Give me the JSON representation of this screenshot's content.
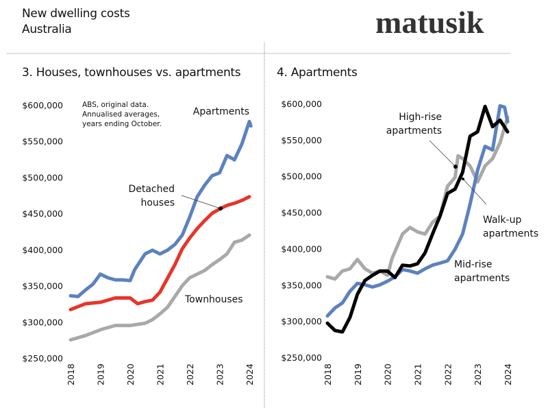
{
  "header": {
    "title": "New dwelling costs",
    "subtitle": "Australia",
    "logo": "matusik"
  },
  "colors": {
    "blue": "#5b82c0",
    "red": "#e8342a",
    "gray": "#a9a9a9",
    "black": "#000000"
  },
  "chart_data": [
    {
      "type": "line",
      "title": "3. Houses, townhouses vs. apartments",
      "note": [
        "ABS, original data.",
        "Annualised averages,",
        "years ending October."
      ],
      "xlim": [
        2018,
        2024
      ],
      "ylim": [
        250000,
        600000
      ],
      "x_ticks": [
        "2018",
        "2019",
        "2020",
        "2021",
        "2022",
        "2023",
        "2024"
      ],
      "y_ticks": [
        "$250,000",
        "$300,000",
        "$350,000",
        "$400,000",
        "$450,000",
        "$500,000",
        "$550,000",
        "$600,000"
      ],
      "grid": false,
      "series": [
        {
          "name": "Apartments",
          "color": "#5b82c0",
          "x": [
            2018,
            2018.25,
            2018.5,
            2018.75,
            2019,
            2019.25,
            2019.5,
            2019.75,
            2020,
            2020.15,
            2020.5,
            2020.75,
            2021,
            2021.25,
            2021.5,
            2021.75,
            2022,
            2022.25,
            2022.5,
            2022.75,
            2023,
            2023.25,
            2023.5,
            2023.75,
            2024,
            2024.05
          ],
          "y": [
            336000,
            335000,
            344000,
            352000,
            366000,
            361000,
            358000,
            358000,
            357000,
            372000,
            394000,
            399000,
            394000,
            399000,
            407000,
            420000,
            445000,
            473000,
            489000,
            502000,
            506000,
            530000,
            524000,
            546000,
            577000,
            571000
          ]
        },
        {
          "name": "Detached houses",
          "color": "#e8342a",
          "x": [
            2018,
            2018.5,
            2019,
            2019.5,
            2020,
            2020.25,
            2020.5,
            2020.75,
            2021,
            2021.25,
            2021.5,
            2021.75,
            2022,
            2022.25,
            2022.5,
            2022.75,
            2023,
            2023.25,
            2023.5,
            2023.75,
            2024
          ],
          "y": [
            317000,
            325000,
            327000,
            333000,
            333000,
            325000,
            328000,
            330000,
            341000,
            360000,
            379000,
            401000,
            416000,
            429000,
            440000,
            450000,
            456000,
            461000,
            464000,
            468000,
            473000
          ]
        },
        {
          "name": "Townhouses",
          "color": "#a9a9a9",
          "x": [
            2018,
            2018.5,
            2019,
            2019.5,
            2020,
            2020.5,
            2020.75,
            2021,
            2021.25,
            2021.5,
            2021.75,
            2022,
            2022.25,
            2022.5,
            2022.75,
            2023,
            2023.25,
            2023.5,
            2023.75,
            2024
          ],
          "y": [
            275000,
            281000,
            289000,
            295000,
            295000,
            298000,
            303000,
            311000,
            320000,
            335000,
            350000,
            361000,
            366000,
            371000,
            379000,
            386000,
            394000,
            410000,
            413000,
            420000
          ]
        }
      ]
    },
    {
      "type": "line",
      "title": "4. Apartments",
      "xlim": [
        2018,
        2024
      ],
      "ylim": [
        250000,
        600000
      ],
      "x_ticks": [
        "2018",
        "2019",
        "2020",
        "2021",
        "2022",
        "2023",
        "2024"
      ],
      "y_ticks": [
        "$250,000",
        "$300,000",
        "$350,000",
        "$400,000",
        "$450,000",
        "$500,000",
        "$550,000",
        "$600,000"
      ],
      "grid": false,
      "series": [
        {
          "name": "High-rise apartments",
          "color": "#a9a9a9",
          "x": [
            2018,
            2018.25,
            2018.5,
            2018.75,
            2019,
            2019.25,
            2019.5,
            2019.75,
            2020,
            2020.15,
            2020.5,
            2020.75,
            2021,
            2021.25,
            2021.5,
            2021.75,
            2022,
            2022.25,
            2022.35,
            2022.5,
            2022.75,
            2023,
            2023.25,
            2023.5,
            2023.75,
            2024
          ],
          "y": [
            361000,
            358000,
            369000,
            372000,
            385000,
            372000,
            366000,
            369000,
            363000,
            386000,
            420000,
            429000,
            423000,
            420000,
            436000,
            445000,
            486000,
            498000,
            528000,
            524000,
            514000,
            492000,
            514000,
            524000,
            546000,
            581000
          ]
        },
        {
          "name": "Mid-rise apartments",
          "color": "#5b82c0",
          "x": [
            2018,
            2018.25,
            2018.5,
            2018.75,
            2019,
            2019.25,
            2019.5,
            2019.75,
            2020,
            2020.25,
            2020.5,
            2020.75,
            2021,
            2021.25,
            2021.5,
            2021.75,
            2022,
            2022.25,
            2022.5,
            2022.75,
            2023,
            2023.25,
            2023.5,
            2023.75,
            2023.9,
            2024
          ],
          "y": [
            307000,
            318000,
            325000,
            341000,
            352000,
            350000,
            347000,
            350000,
            355000,
            361000,
            371000,
            369000,
            366000,
            372000,
            377000,
            380000,
            383000,
            399000,
            420000,
            461000,
            508000,
            541000,
            536000,
            597000,
            595000,
            575000
          ]
        },
        {
          "name": "Walk-up apartments",
          "color": "#000000",
          "x": [
            2018,
            2018.25,
            2018.5,
            2018.75,
            2019,
            2019.25,
            2019.5,
            2019.75,
            2020,
            2020.25,
            2020.5,
            2020.75,
            2021,
            2021.25,
            2021.5,
            2021.75,
            2022,
            2022.25,
            2022.5,
            2022.75,
            2023,
            2023.25,
            2023.5,
            2023.75,
            2024
          ],
          "y": [
            297000,
            287000,
            285000,
            305000,
            337000,
            356000,
            363000,
            369000,
            369000,
            360000,
            377000,
            376000,
            379000,
            394000,
            420000,
            445000,
            476000,
            482000,
            505000,
            555000,
            561000,
            596000,
            568000,
            577000,
            561000
          ]
        }
      ]
    }
  ]
}
